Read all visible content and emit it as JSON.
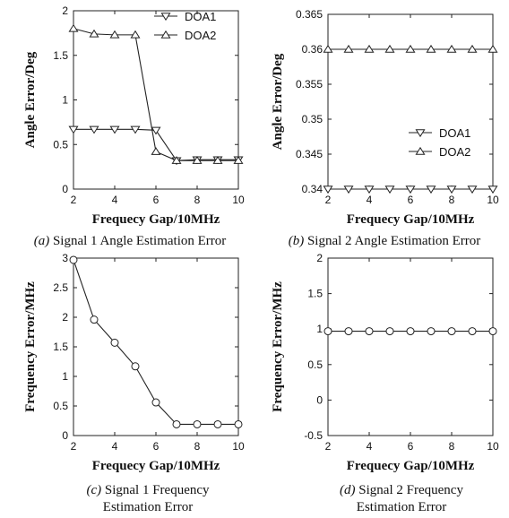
{
  "panels": [
    {
      "caption_label": "(a)",
      "caption_lines": [
        "Signal 1 Angle Estimation Error"
      ],
      "chart_data": {
        "type": "line",
        "title": "",
        "xlabel": "Frequecy Gap/10MHz",
        "ylabel": "Angle Error/Deg",
        "xlim": [
          2,
          10
        ],
        "ylim": [
          0,
          2
        ],
        "xticks": [
          2,
          4,
          6,
          8,
          10
        ],
        "yticks": [
          0,
          0.5,
          1,
          1.5,
          2
        ],
        "ytick_labels": [
          "0",
          "0.5",
          "1",
          "1.5",
          "2"
        ],
        "legend_position": "top-right",
        "x": [
          2,
          3,
          4,
          5,
          6,
          7,
          8,
          9,
          10
        ],
        "series": [
          {
            "name": "DOA1",
            "marker": "triangle-down",
            "values": [
              0.67,
              0.67,
              0.67,
              0.67,
              0.66,
              0.32,
              0.33,
              0.33,
              0.33
            ]
          },
          {
            "name": "DOA2",
            "marker": "triangle-up",
            "values": [
              1.8,
              1.74,
              1.73,
              1.73,
              0.42,
              0.32,
              0.32,
              0.32,
              0.32
            ]
          }
        ]
      }
    },
    {
      "caption_label": "(b)",
      "caption_lines": [
        "Signal 2 Angle Estimation Error"
      ],
      "chart_data": {
        "type": "line",
        "title": "",
        "xlabel": "Frequecy Gap/10MHz",
        "ylabel": "Angle Error/Deg",
        "xlim": [
          2,
          10
        ],
        "ylim": [
          0.34,
          0.365
        ],
        "xticks": [
          2,
          4,
          6,
          8,
          10
        ],
        "yticks": [
          0.34,
          0.345,
          0.35,
          0.355,
          0.36,
          0.365
        ],
        "ytick_labels": [
          "0.34",
          "0.345",
          "0.35",
          "0.355",
          "0.36",
          "0.365"
        ],
        "legend_position": "bottom-right",
        "x": [
          2,
          3,
          4,
          5,
          6,
          7,
          8,
          9,
          10
        ],
        "series": [
          {
            "name": "DOA1",
            "marker": "triangle-down",
            "values": [
              0.34,
              0.34,
              0.34,
              0.34,
              0.34,
              0.34,
              0.34,
              0.34,
              0.34
            ]
          },
          {
            "name": "DOA2",
            "marker": "triangle-up",
            "values": [
              0.36,
              0.36,
              0.36,
              0.36,
              0.36,
              0.36,
              0.36,
              0.36,
              0.36
            ]
          }
        ]
      }
    },
    {
      "caption_label": "(c)",
      "caption_lines": [
        "Signal 1 Frequency",
        "Estimation Error"
      ],
      "chart_data": {
        "type": "line",
        "title": "",
        "xlabel": "Frequecy Gap/10MHz",
        "ylabel": "Frequency Error/MHz",
        "xlim": [
          2,
          10
        ],
        "ylim": [
          0,
          3
        ],
        "xticks": [
          2,
          4,
          6,
          8,
          10
        ],
        "yticks": [
          0,
          0.5,
          1,
          1.5,
          2,
          2.5,
          3
        ],
        "ytick_labels": [
          "0",
          "0.5",
          "1",
          "1.5",
          "2",
          "2.5",
          "3"
        ],
        "x": [
          2,
          3,
          4,
          5,
          6,
          7,
          8,
          9,
          10
        ],
        "series": [
          {
            "marker": "circle",
            "values": [
              2.97,
              1.96,
              1.57,
              1.17,
              0.56,
              0.19,
              0.19,
              0.19,
              0.19
            ]
          }
        ]
      }
    },
    {
      "caption_label": "(d)",
      "caption_lines": [
        "Signal 2 Frequency",
        "Estimation Error"
      ],
      "chart_data": {
        "type": "line",
        "title": "",
        "xlabel": "Frequecy Gap/10MHz",
        "ylabel": "Frequency Error/MHz",
        "xlim": [
          2,
          10
        ],
        "ylim": [
          -0.5,
          2
        ],
        "xticks": [
          2,
          4,
          6,
          8,
          10
        ],
        "yticks": [
          -0.5,
          0,
          0.5,
          1,
          1.5,
          2
        ],
        "ytick_labels": [
          "-0.5",
          "0",
          "0.5",
          "1",
          "1.5",
          "2"
        ],
        "x": [
          2,
          3,
          4,
          5,
          6,
          7,
          8,
          9,
          10
        ],
        "series": [
          {
            "marker": "circle",
            "values": [
              0.97,
              0.97,
              0.97,
              0.97,
              0.97,
              0.97,
              0.97,
              0.97,
              0.97
            ]
          }
        ]
      }
    }
  ]
}
